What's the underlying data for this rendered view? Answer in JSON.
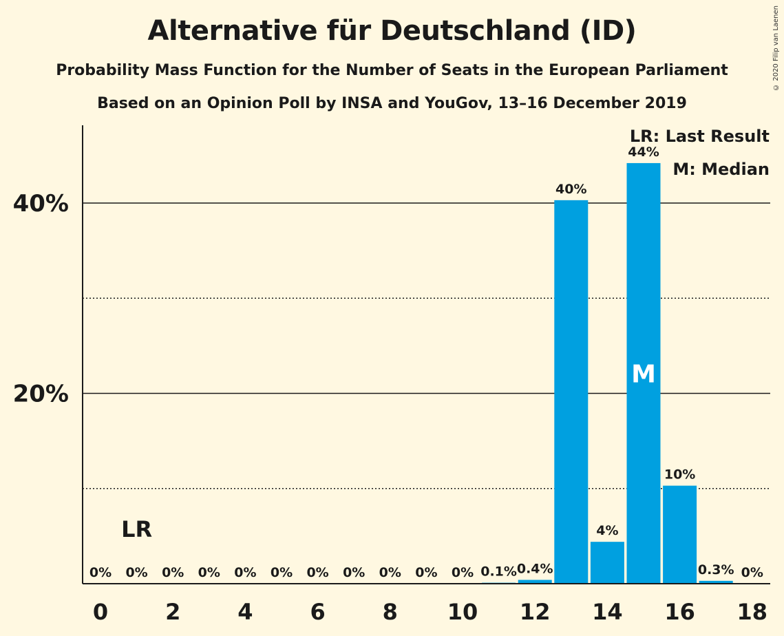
{
  "chart_data": {
    "type": "bar",
    "title": "Alternative für Deutschland (ID)",
    "subtitle": "Probability Mass Function for the Number of Seats in the European Parliament",
    "subtitle2": "Based on an Opinion Poll by INSA and YouGov, 13–16 December 2019",
    "copyright": "© 2020 Filip van Laenen",
    "legend": {
      "lr": "LR: Last Result",
      "m": "M: Median",
      "placement": "top-right"
    },
    "x": [
      0,
      1,
      2,
      3,
      4,
      5,
      6,
      7,
      8,
      9,
      10,
      11,
      12,
      13,
      14,
      15,
      16,
      17,
      18
    ],
    "values": [
      0,
      0,
      0,
      0,
      0,
      0,
      0,
      0,
      0,
      0,
      0,
      0.1,
      0.4,
      40.3,
      4.4,
      44.2,
      10.3,
      0.3,
      0
    ],
    "labels": [
      "0%",
      "0%",
      "0%",
      "0%",
      "0%",
      "0%",
      "0%",
      "0%",
      "0%",
      "0%",
      "0%",
      "0.1%",
      "0.4%",
      "40%",
      "4%",
      "44%",
      "10%",
      "0.3%",
      "0%"
    ],
    "xticks": [
      "0",
      "2",
      "4",
      "6",
      "8",
      "10",
      "12",
      "14",
      "16",
      "18"
    ],
    "xtick_values": [
      0,
      2,
      4,
      6,
      8,
      10,
      12,
      14,
      16,
      18
    ],
    "yticks": [
      "20%",
      "40%"
    ],
    "ytick_values": [
      20,
      40
    ],
    "minor_gridlines": [
      10,
      30
    ],
    "ylim": [
      0,
      48
    ],
    "last_result": {
      "seat": 1,
      "label": "LR"
    },
    "median": {
      "seat": 15,
      "label": "M"
    },
    "bar_color": "#00a0e0",
    "grid": true
  }
}
